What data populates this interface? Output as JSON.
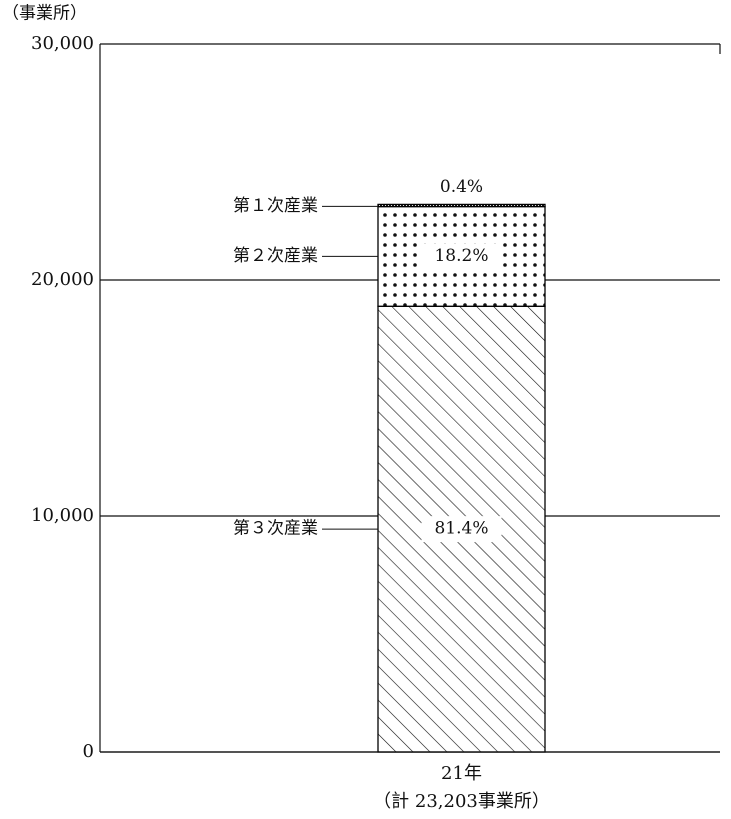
{
  "chart_data": {
    "type": "stacked_bar",
    "y_label": "（事業所）",
    "categories": [
      "21年"
    ],
    "category_notes": [
      "（計 23,203事業所）"
    ],
    "series": [
      {
        "name": "第３次産業",
        "color": "#000000",
        "pattern": "hatch",
        "values": [
          18887
        ],
        "value_labels": [
          "81.4%"
        ]
      },
      {
        "name": "第２次産業",
        "color": "#000000",
        "pattern": "dots",
        "values": [
          4223
        ],
        "value_labels": [
          "18.2%"
        ]
      },
      {
        "name": "第１次産業",
        "color": "#000000",
        "pattern": "dense",
        "values": [
          93
        ],
        "value_labels": [
          "0.4%"
        ]
      }
    ],
    "ylim": [
      0,
      30000
    ],
    "yticks": [
      0,
      {
        "value": 10000,
        "label": "10,000"
      },
      {
        "value": 20000,
        "label": "20,000"
      },
      {
        "value": 30000,
        "label": "30,000"
      }
    ],
    "grid": true
  }
}
